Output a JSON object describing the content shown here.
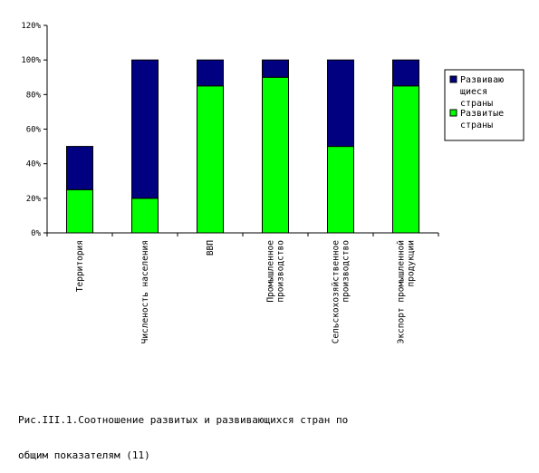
{
  "chart_data": {
    "type": "bar",
    "stacked": true,
    "categories": [
      [
        "Территория"
      ],
      [
        "Численость населения"
      ],
      [
        "ВВП"
      ],
      [
        "Промышленное",
        "производство"
      ],
      [
        "Сельскохозяйственное",
        "производство"
      ],
      [
        "Экспорт промышленной",
        "продукции"
      ]
    ],
    "series": [
      {
        "name_lines": [
          "Развитые",
          "страны"
        ],
        "color": "#00ff00",
        "values": [
          25,
          20,
          85,
          90,
          50,
          85
        ]
      },
      {
        "name_lines": [
          "Развиваю",
          "щиеся",
          "страны"
        ],
        "color": "#000080",
        "values": [
          25,
          80,
          15,
          10,
          50,
          15
        ]
      }
    ],
    "yticks": [
      "0%",
      "20%",
      "40%",
      "60%",
      "80%",
      "100%",
      "120%"
    ],
    "ylim": [
      0,
      120
    ],
    "grid": false,
    "legend": "right"
  },
  "caption_lines": [
    "Рис.III.1.Соотношение развитых и развивающихся стран по",
    "общим показателям (11)"
  ]
}
